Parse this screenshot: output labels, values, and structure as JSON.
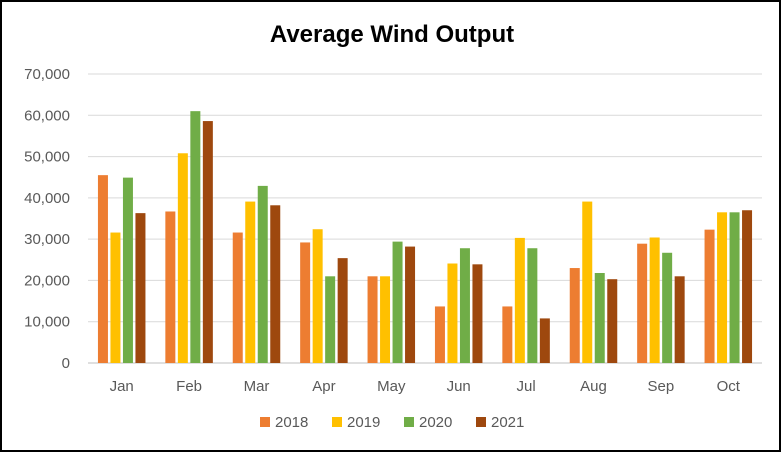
{
  "chart_data": {
    "type": "bar",
    "title": "Average Wind Output",
    "xlabel": "",
    "ylabel": "",
    "ylim": [
      0,
      70000
    ],
    "yticks": [
      "0",
      "10,000",
      "20,000",
      "30,000",
      "40,000",
      "50,000",
      "60,000",
      "70,000"
    ],
    "grid": true,
    "legend_position": "bottom",
    "categories": [
      "Jan",
      "Feb",
      "Mar",
      "Apr",
      "May",
      "Jun",
      "Jul",
      "Aug",
      "Sep",
      "Oct"
    ],
    "series": [
      {
        "name": "2018",
        "color": "#ED7D31",
        "values": [
          45500,
          36700,
          31600,
          29200,
          21000,
          13700,
          13700,
          23000,
          28900,
          32300
        ]
      },
      {
        "name": "2019",
        "color": "#FFC000",
        "values": [
          31600,
          50800,
          39100,
          32400,
          21000,
          24100,
          30300,
          39100,
          30400,
          36500
        ]
      },
      {
        "name": "2020",
        "color": "#70AD47",
        "values": [
          44900,
          61000,
          42900,
          21000,
          29400,
          27800,
          27800,
          21800,
          26700,
          36500
        ]
      },
      {
        "name": "2021",
        "color": "#9E480E",
        "values": [
          36300,
          58600,
          38200,
          25400,
          28200,
          23900,
          10800,
          20300,
          21000,
          37000
        ]
      }
    ]
  }
}
